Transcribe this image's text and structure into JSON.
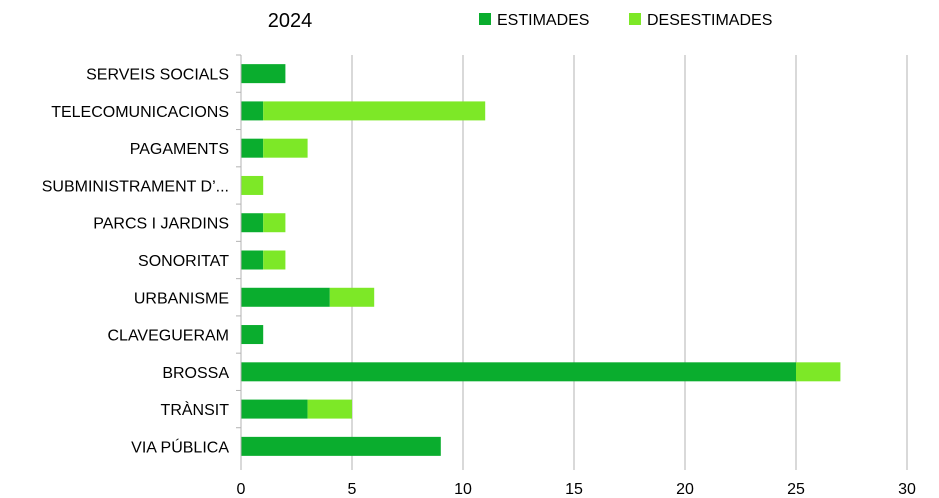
{
  "chart_data": {
    "type": "bar",
    "orientation": "horizontal",
    "stacked": true,
    "title": "2024",
    "categories": [
      "SERVEIS SOCIALS",
      "TELECOMUNICACIONS",
      "PAGAMENTS",
      "SUBMINISTRAMENT D’...",
      "PARCS I JARDINS",
      "SONORITAT",
      "URBANISME",
      "CLAVEGUERAM",
      "BROSSA",
      "TRÀNSIT",
      "VIA PÚBLICA"
    ],
    "series": [
      {
        "name": "ESTIMADES",
        "color": "#0aad2e",
        "values": [
          2,
          1,
          1,
          0,
          1,
          1,
          4,
          1,
          25,
          3,
          9
        ]
      },
      {
        "name": "DESESTIMADES",
        "color": "#7de827",
        "values": [
          0,
          10,
          2,
          1,
          1,
          1,
          2,
          0,
          2,
          2,
          0
        ]
      }
    ],
    "xlim": [
      0,
      30
    ],
    "xticks": [
      0,
      5,
      10,
      15,
      20,
      25,
      30
    ],
    "grid": true,
    "legend": "top"
  }
}
